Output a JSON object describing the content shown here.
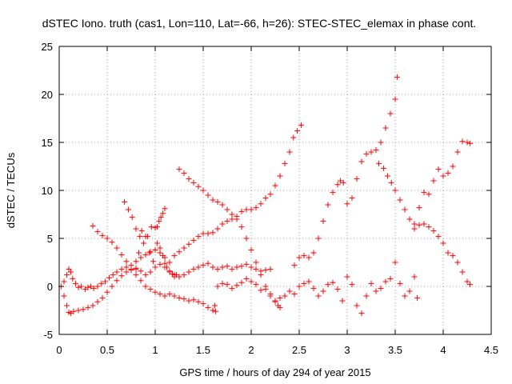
{
  "chart_data": {
    "type": "scatter",
    "title": "dSTEC Iono. truth (cas1, Lon=110, Lat=-66, h=26): STEC-STEC_elemax in phase cont.",
    "xlabel": "GPS time / hours of day 294 of year 2015",
    "ylabel": "dSTEC  / TECUs",
    "xlim": [
      0,
      4.5
    ],
    "ylim": [
      -5,
      25
    ],
    "xticks": [
      "0",
      "0.5",
      "1",
      "1.5",
      "2",
      "2.5",
      "3",
      "3.5",
      "4",
      "4.5"
    ],
    "yticks": [
      "-5",
      "0",
      "5",
      "10",
      "15",
      "20",
      "25"
    ],
    "grid": true,
    "legend": "none",
    "marker": "plus",
    "color": "#ff0000",
    "series": [
      {
        "x": [
          0.02,
          0.05,
          0.08,
          0.1,
          0.12,
          0.14,
          0.17,
          0.2,
          0.23,
          0.27,
          0.3,
          0.33,
          0.36,
          0.4,
          0.44,
          0.48,
          0.52,
          0.56,
          0.6,
          0.65,
          0.7,
          0.75,
          0.8,
          0.85,
          0.9,
          0.95,
          1.0,
          1.05,
          1.1,
          1.15,
          1.2,
          1.25,
          1.3,
          1.35,
          1.4,
          1.45,
          1.5,
          1.55,
          1.6,
          1.65,
          1.7,
          1.75,
          1.8,
          1.85,
          1.9,
          1.95,
          2.0,
          2.05,
          2.1,
          2.15,
          2.2,
          2.25,
          2.3,
          2.35,
          2.4,
          2.44,
          2.48,
          2.52
        ],
        "y": [
          0,
          0.5,
          1.2,
          1.8,
          1.5,
          0.8,
          0.3,
          -0.1,
          0,
          -0.3,
          -0.1,
          0,
          -0.2,
          0,
          0.3,
          0.5,
          0.9,
          1.2,
          1.5,
          1.8,
          2,
          2.2,
          2.6,
          3,
          3.3,
          3.6,
          3.8,
          3.5,
          3,
          2.5,
          3.2,
          3.6,
          4,
          4.4,
          4.8,
          5.2,
          5.5,
          5.5,
          5.6,
          6,
          6.5,
          6.8,
          7,
          7.3,
          7.8,
          8,
          8,
          8.2,
          8.6,
          9.2,
          9.6,
          10.5,
          11.5,
          12.8,
          14,
          15.5,
          16.2,
          16.8
        ]
      },
      {
        "x": [
          0.05,
          0.08,
          0.1,
          0.12,
          0.15,
          0.2,
          0.25,
          0.3,
          0.35,
          0.4,
          0.45,
          0.5,
          0.55,
          0.6,
          0.65,
          0.7,
          0.75,
          0.8,
          0.85,
          0.9,
          0.95,
          1.0,
          1.05,
          1.1,
          1.15,
          1.2,
          1.25,
          1.3,
          1.35,
          1.4,
          1.45,
          1.5,
          1.55,
          1.6,
          1.65,
          1.7,
          1.75,
          1.8,
          1.85,
          1.9,
          1.95,
          2.0,
          2.05,
          2.1,
          2.15,
          2.2
        ],
        "y": [
          -1,
          -2,
          -2.7,
          -2.8,
          -2.6,
          -2.5,
          -2.4,
          -2.2,
          -2,
          -1.6,
          -1.2,
          -0.6,
          0,
          0.6,
          1.1,
          1.5,
          1.7,
          1.9,
          1.6,
          1.2,
          1.5,
          2,
          2.3,
          2,
          1.5,
          1.2,
          1,
          1.2,
          1.5,
          1.8,
          2,
          2.2,
          2.4,
          2,
          1.8,
          2,
          2.1,
          1.8,
          2,
          2.1,
          2.3,
          2,
          1.8,
          1.6,
          1.7,
          1.8
        ]
      },
      {
        "x": [
          0.35,
          0.4,
          0.45,
          0.5,
          0.55,
          0.6,
          0.65,
          0.7,
          0.75,
          0.8,
          0.85,
          0.9,
          0.95,
          1.0,
          1.05,
          1.1,
          1.15,
          1.2,
          1.25,
          1.3,
          1.35,
          1.4,
          1.45,
          1.5,
          1.55,
          1.6,
          1.63
        ],
        "y": [
          6.3,
          5.7,
          5.3,
          5,
          4.6,
          4,
          3.3,
          2.6,
          1.8,
          1.2,
          0.6,
          0,
          -0.3,
          -0.6,
          -0.8,
          -1,
          -0.8,
          -1,
          -1.2,
          -1.3,
          -1.5,
          -1.4,
          -1.6,
          -1.8,
          -2.2,
          -2.5,
          -2.6
        ]
      },
      {
        "x": [
          0.68,
          0.72,
          0.76,
          0.8,
          0.84,
          0.88,
          0.92,
          0.96,
          1.0,
          1.02,
          1.04,
          1.06,
          1.08,
          1.1
        ],
        "y": [
          8.8,
          8,
          7.2,
          6,
          5.2,
          4.5,
          5.2,
          6.2,
          6.1,
          6.2,
          6.8,
          7.2,
          7.6,
          8.1
        ]
      },
      {
        "x": [
          0.8,
          0.83,
          0.86,
          0.9,
          0.94,
          0.98,
          1.0,
          1.02,
          1.05,
          1.08,
          1.1,
          1.12,
          1.15,
          1.18,
          1.2,
          1.22
        ],
        "y": [
          1.8,
          3.5,
          5.8,
          5.2,
          3.5,
          2.6,
          3.8,
          4.5,
          4,
          3.2,
          2.4,
          2,
          1.6,
          1.3,
          1,
          1.2
        ]
      },
      {
        "x": [
          1.25,
          1.3,
          1.35,
          1.4,
          1.45,
          1.5,
          1.55,
          1.6,
          1.65,
          1.7,
          1.75,
          1.8,
          1.85,
          1.9,
          1.95,
          2.0,
          2.05,
          2.1,
          2.15,
          2.2,
          2.25,
          2.28,
          2.3
        ],
        "y": [
          12.2,
          11.8,
          11.2,
          10.8,
          10.4,
          10,
          9.5,
          9,
          8.8,
          8.5,
          8,
          7.5,
          7,
          6.2,
          5,
          3.8,
          2.5,
          1.2,
          0,
          -1,
          -1.6,
          -2,
          -2.2
        ]
      },
      {
        "x": [
          1.62,
          1.65,
          1.7,
          1.75,
          1.8,
          1.85,
          1.9,
          1.95,
          2.0,
          2.05,
          2.1,
          2.15,
          2.2,
          2.25,
          2.3,
          2.35,
          2.4,
          2.45,
          2.5,
          2.55,
          2.6,
          2.65,
          2.7,
          2.75,
          2.8,
          2.85,
          2.9,
          2.95,
          3.0,
          3.05,
          3.1,
          3.15,
          3.2,
          3.25,
          3.3,
          3.35,
          3.4,
          3.45,
          3.5,
          3.55,
          3.6,
          3.65,
          3.7,
          3.73
        ],
        "y": [
          -2,
          0,
          0.3,
          0.2,
          -0.2,
          0.1,
          0.4,
          0.8,
          0.5,
          0.2,
          -0.4,
          -0.3,
          -0.8,
          -1.5,
          -1.2,
          -1,
          -0.5,
          -0.8,
          0,
          0.3,
          0.5,
          -0.2,
          -1,
          -0.5,
          0.2,
          0.4,
          -0.3,
          -1.5,
          1,
          0.2,
          -2,
          -2.8,
          -1,
          0.3,
          -0.5,
          -0.2,
          0.5,
          0.8,
          2.5,
          0.3,
          -1,
          -0.5,
          1,
          -1.2
        ]
      },
      {
        "x": [
          2.45,
          2.5,
          2.55,
          2.6,
          2.65,
          2.7,
          2.75,
          2.8,
          2.85,
          2.9,
          2.93,
          2.96,
          3.0,
          3.05,
          3.1,
          3.15,
          3.2,
          3.25,
          3.3,
          3.35,
          3.4,
          3.45,
          3.5,
          3.52
        ],
        "y": [
          2.2,
          3,
          3.2,
          3,
          3.5,
          5,
          6.8,
          8.5,
          9.8,
          10.6,
          11,
          10.8,
          8.6,
          9.2,
          11.2,
          13,
          13.8,
          14,
          14.2,
          15,
          16.5,
          18,
          19.5,
          21.8
        ]
      },
      {
        "x": [
          3.33,
          3.38,
          3.42,
          3.46,
          3.5,
          3.55,
          3.6,
          3.65,
          3.7,
          3.75,
          3.8,
          3.85,
          3.9,
          3.95,
          4.0,
          4.05,
          4.1,
          4.15,
          4.2,
          4.25,
          4.28
        ],
        "y": [
          12.8,
          12.3,
          11.5,
          10.8,
          10,
          9,
          8,
          7,
          6.5,
          6.4,
          6.5,
          6.2,
          5.8,
          5.2,
          4.5,
          3.5,
          3.2,
          2.5,
          1.5,
          0.5,
          0.2
        ]
      },
      {
        "x": [
          3.7,
          3.75,
          3.8,
          3.85,
          3.9,
          3.95,
          4.0,
          4.05,
          4.1,
          4.15,
          4.2,
          4.25,
          4.28
        ],
        "y": [
          6,
          8.2,
          9.8,
          9.6,
          11,
          12.2,
          11.5,
          11.8,
          12.5,
          14,
          15.1,
          15,
          14.9
        ]
      }
    ]
  }
}
